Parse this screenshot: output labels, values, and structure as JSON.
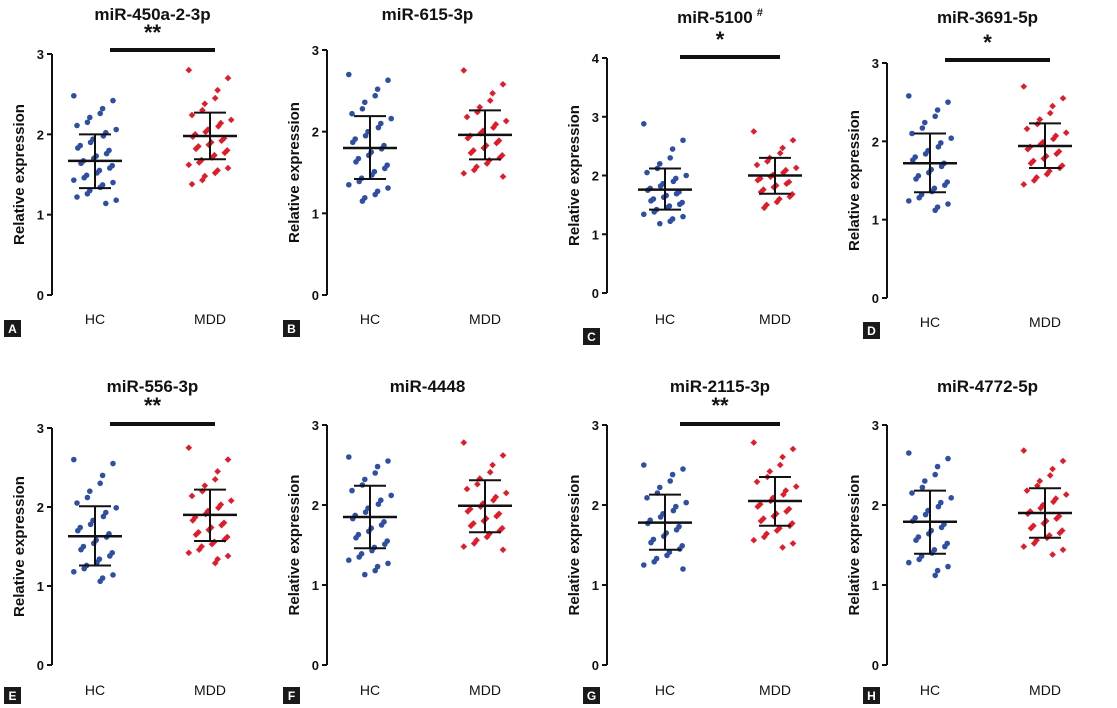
{
  "figure": {
    "colors": {
      "HC": "#2e4fa3",
      "MDD": "#e21b2a",
      "axis": "#111111",
      "panel_label_bg": "#1a1a1a"
    }
  },
  "chart_data": [
    {
      "panel_label": "A",
      "type": "scatter",
      "title": "miR-450a-2-3p",
      "title_sup": "",
      "ylabel": "Relative expression",
      "ylim": [
        0,
        3
      ],
      "yticks": [
        "0",
        "1",
        "2",
        "3"
      ],
      "categories": [
        "HC",
        "MDD"
      ],
      "marker_shapes": [
        "circle",
        "diamond"
      ],
      "significance": "**",
      "summary": [
        {
          "group": "HC",
          "mean": 1.67,
          "sd_low": 1.33,
          "sd_high": 2.0
        },
        {
          "group": "MDD",
          "mean": 1.98,
          "sd_low": 1.69,
          "sd_high": 2.27
        }
      ],
      "series": [
        {
          "name": "HC",
          "values": [
            2.48,
            2.42,
            2.32,
            2.26,
            2.21,
            2.15,
            2.11,
            2.06,
            2.02,
            1.98,
            1.94,
            1.9,
            1.86,
            1.83,
            1.8,
            1.76,
            1.73,
            1.7,
            1.67,
            1.64,
            1.61,
            1.58,
            1.55,
            1.52,
            1.49,
            1.46,
            1.43,
            1.4,
            1.37,
            1.34,
            1.3,
            1.26,
            1.22,
            1.18,
            1.14
          ]
        },
        {
          "name": "MDD",
          "values": [
            2.8,
            2.7,
            2.55,
            2.45,
            2.38,
            2.3,
            2.24,
            2.18,
            2.14,
            2.1,
            2.06,
            2.03,
            2.0,
            1.97,
            1.95,
            1.92,
            1.9,
            1.87,
            1.85,
            1.82,
            1.8,
            1.77,
            1.74,
            1.71,
            1.68,
            1.65,
            1.62,
            1.58,
            1.55,
            1.52,
            1.48,
            1.43,
            1.38
          ]
        }
      ]
    },
    {
      "panel_label": "B",
      "type": "scatter",
      "title": "miR-615-3p",
      "title_sup": "",
      "ylabel": "Relative expression",
      "ylim": [
        0,
        3
      ],
      "yticks": [
        "0",
        "1",
        "2",
        "3"
      ],
      "categories": [
        "HC",
        "MDD"
      ],
      "marker_shapes": [
        "circle",
        "diamond"
      ],
      "significance": "",
      "summary": [
        {
          "group": "HC",
          "mean": 1.8,
          "sd_low": 1.42,
          "sd_high": 2.19
        },
        {
          "group": "MDD",
          "mean": 1.96,
          "sd_low": 1.66,
          "sd_high": 2.26
        }
      ],
      "series": [
        {
          "name": "HC",
          "values": [
            2.7,
            2.63,
            2.52,
            2.44,
            2.36,
            2.28,
            2.22,
            2.16,
            2.1,
            2.05,
            2.0,
            1.95,
            1.91,
            1.87,
            1.83,
            1.79,
            1.75,
            1.71,
            1.67,
            1.63,
            1.59,
            1.55,
            1.51,
            1.47,
            1.43,
            1.39,
            1.35,
            1.31,
            1.27,
            1.23,
            1.19,
            1.15
          ]
        },
        {
          "name": "MDD",
          "values": [
            2.75,
            2.58,
            2.47,
            2.38,
            2.3,
            2.24,
            2.18,
            2.13,
            2.09,
            2.05,
            2.01,
            1.98,
            1.95,
            1.92,
            1.89,
            1.86,
            1.83,
            1.8,
            1.77,
            1.74,
            1.71,
            1.68,
            1.65,
            1.61,
            1.57,
            1.53,
            1.49,
            1.45
          ]
        }
      ]
    },
    {
      "panel_label": "C",
      "type": "scatter",
      "title": "miR-5100",
      "title_sup": "#",
      "ylabel": "Relative expression",
      "ylim": [
        0,
        4
      ],
      "yticks": [
        "0",
        "1",
        "2",
        "3",
        "4"
      ],
      "categories": [
        "HC",
        "MDD"
      ],
      "marker_shapes": [
        "circle",
        "diamond"
      ],
      "significance": "*",
      "summary": [
        {
          "group": "HC",
          "mean": 1.76,
          "sd_low": 1.42,
          "sd_high": 2.12
        },
        {
          "group": "MDD",
          "mean": 2.0,
          "sd_low": 1.69,
          "sd_high": 2.3
        }
      ],
      "series": [
        {
          "name": "HC",
          "values": [
            2.88,
            2.6,
            2.45,
            2.3,
            2.2,
            2.12,
            2.05,
            2.0,
            1.95,
            1.9,
            1.86,
            1.82,
            1.78,
            1.75,
            1.72,
            1.69,
            1.66,
            1.63,
            1.6,
            1.57,
            1.54,
            1.51,
            1.48,
            1.45,
            1.42,
            1.38,
            1.34,
            1.3,
            1.26,
            1.22,
            1.18
          ]
        },
        {
          "name": "MDD",
          "values": [
            2.75,
            2.6,
            2.47,
            2.38,
            2.3,
            2.24,
            2.18,
            2.13,
            2.09,
            2.05,
            2.01,
            1.98,
            1.95,
            1.92,
            1.89,
            1.86,
            1.83,
            1.8,
            1.76,
            1.72,
            1.68,
            1.64,
            1.6,
            1.55,
            1.5,
            1.45
          ]
        }
      ]
    },
    {
      "panel_label": "D",
      "type": "scatter",
      "title": "miR-3691-5p",
      "title_sup": "",
      "ylabel": "Relative expression",
      "ylim": [
        0,
        3
      ],
      "yticks": [
        "0",
        "1",
        "2",
        "3"
      ],
      "categories": [
        "HC",
        "MDD"
      ],
      "marker_shapes": [
        "circle",
        "diamond"
      ],
      "significance": "*",
      "summary": [
        {
          "group": "HC",
          "mean": 1.72,
          "sd_low": 1.35,
          "sd_high": 2.1
        },
        {
          "group": "MDD",
          "mean": 1.94,
          "sd_low": 1.66,
          "sd_high": 2.23
        }
      ],
      "series": [
        {
          "name": "HC",
          "values": [
            2.58,
            2.5,
            2.4,
            2.32,
            2.24,
            2.17,
            2.1,
            2.04,
            1.98,
            1.93,
            1.88,
            1.84,
            1.8,
            1.76,
            1.72,
            1.68,
            1.64,
            1.6,
            1.56,
            1.52,
            1.48,
            1.44,
            1.4,
            1.36,
            1.32,
            1.28,
            1.24,
            1.2,
            1.16,
            1.12
          ]
        },
        {
          "name": "MDD",
          "values": [
            2.7,
            2.55,
            2.45,
            2.36,
            2.28,
            2.22,
            2.16,
            2.11,
            2.07,
            2.03,
            1.99,
            1.96,
            1.93,
            1.9,
            1.87,
            1.84,
            1.81,
            1.78,
            1.75,
            1.72,
            1.69,
            1.66,
            1.62,
            1.58,
            1.54,
            1.5,
            1.45
          ]
        }
      ]
    },
    {
      "panel_label": "E",
      "type": "scatter",
      "title": "miR-556-3p",
      "title_sup": "",
      "ylabel": "Relative expression",
      "ylim": [
        0,
        3
      ],
      "yticks": [
        "0",
        "1",
        "2",
        "3"
      ],
      "categories": [
        "HC",
        "MDD"
      ],
      "marker_shapes": [
        "circle",
        "diamond"
      ],
      "significance": "**",
      "summary": [
        {
          "group": "HC",
          "mean": 1.63,
          "sd_low": 1.26,
          "sd_high": 2.01
        },
        {
          "group": "MDD",
          "mean": 1.9,
          "sd_low": 1.57,
          "sd_high": 2.22
        }
      ],
      "series": [
        {
          "name": "HC",
          "values": [
            2.6,
            2.55,
            2.4,
            2.3,
            2.2,
            2.12,
            2.05,
            1.99,
            1.93,
            1.88,
            1.83,
            1.78,
            1.74,
            1.7,
            1.66,
            1.62,
            1.58,
            1.54,
            1.5,
            1.46,
            1.42,
            1.38,
            1.34,
            1.3,
            1.26,
            1.22,
            1.18,
            1.14,
            1.1,
            1.06
          ]
        },
        {
          "name": "MDD",
          "values": [
            2.75,
            2.6,
            2.45,
            2.35,
            2.27,
            2.2,
            2.14,
            2.08,
            2.03,
            1.99,
            1.95,
            1.91,
            1.87,
            1.83,
            1.8,
            1.77,
            1.74,
            1.71,
            1.68,
            1.65,
            1.62,
            1.59,
            1.56,
            1.53,
            1.5,
            1.46,
            1.42,
            1.38,
            1.34,
            1.29
          ]
        }
      ]
    },
    {
      "panel_label": "F",
      "type": "scatter",
      "title": "miR-4448",
      "title_sup": "",
      "ylabel": "Relative expression",
      "ylim": [
        0,
        3
      ],
      "yticks": [
        "0",
        "1",
        "2",
        "3"
      ],
      "categories": [
        "HC",
        "MDD"
      ],
      "marker_shapes": [
        "circle",
        "diamond"
      ],
      "significance": "",
      "summary": [
        {
          "group": "HC",
          "mean": 1.85,
          "sd_low": 1.46,
          "sd_high": 2.24
        },
        {
          "group": "MDD",
          "mean": 1.99,
          "sd_low": 1.66,
          "sd_high": 2.31
        }
      ],
      "series": [
        {
          "name": "HC",
          "values": [
            2.6,
            2.55,
            2.48,
            2.4,
            2.32,
            2.25,
            2.18,
            2.12,
            2.06,
            2.01,
            1.96,
            1.91,
            1.87,
            1.83,
            1.79,
            1.75,
            1.71,
            1.67,
            1.63,
            1.59,
            1.55,
            1.51,
            1.47,
            1.43,
            1.39,
            1.35,
            1.31,
            1.27,
            1.23,
            1.18,
            1.13
          ]
        },
        {
          "name": "MDD",
          "values": [
            2.78,
            2.62,
            2.5,
            2.41,
            2.33,
            2.26,
            2.2,
            2.15,
            2.1,
            2.06,
            2.02,
            1.98,
            1.95,
            1.92,
            1.89,
            1.86,
            1.83,
            1.8,
            1.77,
            1.74,
            1.71,
            1.68,
            1.64,
            1.6,
            1.56,
            1.52,
            1.48,
            1.44
          ]
        }
      ]
    },
    {
      "panel_label": "G",
      "type": "scatter",
      "title": "miR-2115-3p",
      "title_sup": "",
      "ylabel": "Relative expression",
      "ylim": [
        0,
        3
      ],
      "yticks": [
        "0",
        "1",
        "2",
        "3"
      ],
      "categories": [
        "HC",
        "MDD"
      ],
      "marker_shapes": [
        "circle",
        "diamond"
      ],
      "significance": "**",
      "summary": [
        {
          "group": "HC",
          "mean": 1.78,
          "sd_low": 1.44,
          "sd_high": 2.13
        },
        {
          "group": "MDD",
          "mean": 2.05,
          "sd_low": 1.74,
          "sd_high": 2.35
        }
      ],
      "series": [
        {
          "name": "HC",
          "values": [
            2.5,
            2.45,
            2.38,
            2.3,
            2.22,
            2.15,
            2.09,
            2.03,
            1.98,
            1.93,
            1.89,
            1.85,
            1.81,
            1.77,
            1.73,
            1.69,
            1.65,
            1.61,
            1.57,
            1.53,
            1.49,
            1.45,
            1.41,
            1.37,
            1.33,
            1.29,
            1.25,
            1.2
          ]
        },
        {
          "name": "MDD",
          "values": [
            2.78,
            2.7,
            2.6,
            2.5,
            2.42,
            2.35,
            2.29,
            2.23,
            2.18,
            2.13,
            2.09,
            2.05,
            2.01,
            1.98,
            1.95,
            1.92,
            1.89,
            1.86,
            1.83,
            1.8,
            1.77,
            1.74,
            1.71,
            1.68,
            1.64,
            1.6,
            1.56,
            1.52,
            1.47
          ]
        }
      ]
    },
    {
      "panel_label": "H",
      "type": "scatter",
      "title": "miR-4772-5p",
      "title_sup": "",
      "ylabel": "Relative expression",
      "ylim": [
        0,
        3
      ],
      "yticks": [
        "0",
        "1",
        "2",
        "3"
      ],
      "categories": [
        "HC",
        "MDD"
      ],
      "marker_shapes": [
        "circle",
        "diamond"
      ],
      "significance": "",
      "summary": [
        {
          "group": "HC",
          "mean": 1.79,
          "sd_low": 1.39,
          "sd_high": 2.18
        },
        {
          "group": "MDD",
          "mean": 1.9,
          "sd_low": 1.59,
          "sd_high": 2.21
        }
      ],
      "series": [
        {
          "name": "HC",
          "values": [
            2.65,
            2.58,
            2.48,
            2.38,
            2.3,
            2.22,
            2.15,
            2.09,
            2.03,
            1.98,
            1.93,
            1.88,
            1.84,
            1.8,
            1.76,
            1.72,
            1.68,
            1.64,
            1.6,
            1.56,
            1.52,
            1.48,
            1.44,
            1.4,
            1.36,
            1.32,
            1.28,
            1.23,
            1.18,
            1.12
          ]
        },
        {
          "name": "MDD",
          "values": [
            2.68,
            2.55,
            2.45,
            2.37,
            2.3,
            2.24,
            2.18,
            2.13,
            2.08,
            2.04,
            2.0,
            1.96,
            1.92,
            1.89,
            1.86,
            1.83,
            1.8,
            1.77,
            1.74,
            1.71,
            1.68,
            1.65,
            1.62,
            1.59,
            1.56,
            1.52,
            1.48,
            1.44,
            1.38
          ]
        }
      ]
    }
  ]
}
